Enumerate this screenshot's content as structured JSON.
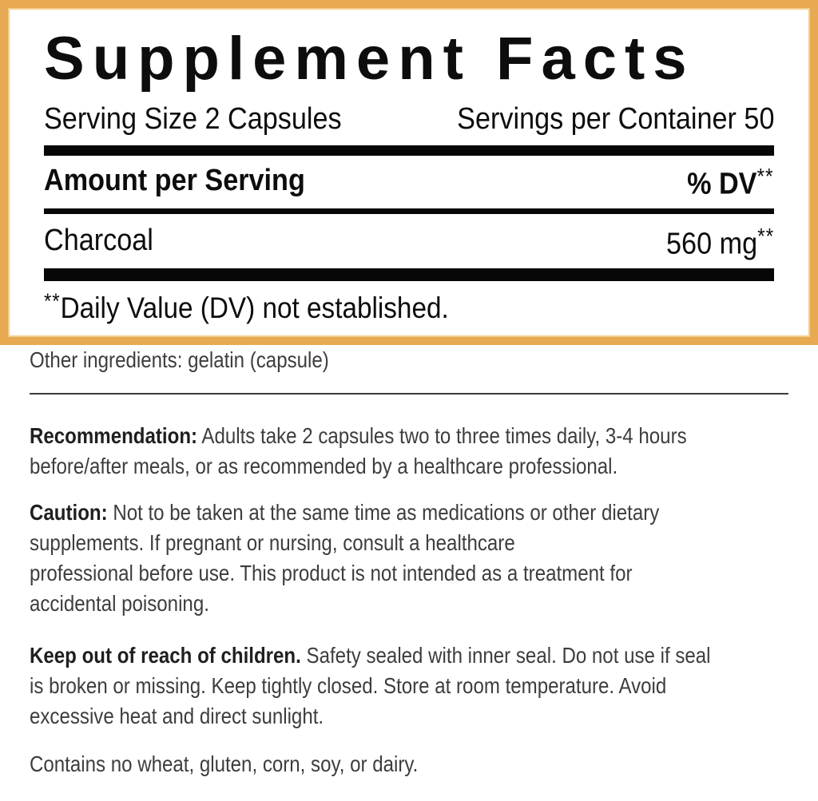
{
  "panel": {
    "title": "Supplement Facts",
    "serving_size": "Serving Size 2 Capsules",
    "servings_per_container": "Servings per Container 50",
    "amount_header": "Amount per Serving",
    "dv_header": "% DV",
    "dv_marker": "**",
    "rows": [
      {
        "name": "Charcoal",
        "amount": "560 mg",
        "marker": "**"
      }
    ],
    "footnote_marker": "**",
    "footnote": "Daily Value (DV) not established."
  },
  "other_ingredients": "Other ingredients: gelatin (capsule)",
  "sections": [
    {
      "label": "Recommendation:",
      "text": " Adults take 2 capsules two to three times daily, 3-4 hours\nbefore/after meals, or as recommended by a healthcare professional."
    },
    {
      "label": "Caution:",
      "text": " Not to be taken at the same time as medications or other dietary\nsupplements. If pregnant or nursing, consult a healthcare\nprofessional before use. This product is not intended as a treatment for\naccidental poisoning."
    },
    {
      "label": "Keep out of reach of children.",
      "text": " Safety sealed with inner seal. Do not use if seal\nis broken or missing. Keep tightly closed. Store at room temperature. Avoid\nexcessive heat and direct sunlight."
    }
  ],
  "contains": "Contains no wheat, gluten, corn, soy, or dairy.",
  "colors": {
    "border_gold": "#e7aa52",
    "border_gold_light": "#f3cf8e",
    "panel_text": "#0d0d0d",
    "body_text": "#3d3d3d",
    "rule_black": "#070707"
  }
}
